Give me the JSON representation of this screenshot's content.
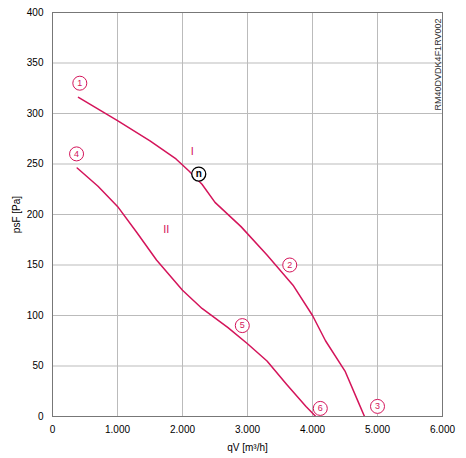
{
  "chart_data": {
    "type": "line",
    "x_label": "qV [m³/h]",
    "y_label": "psF [Pa]",
    "xlim": [
      0,
      6000
    ],
    "ylim": [
      0,
      400
    ],
    "xticks": [
      0,
      {
        "value": 1000,
        "label": "1.000"
      },
      {
        "value": 2000,
        "label": "2.000"
      },
      {
        "value": 3000,
        "label": "3.000"
      },
      {
        "value": 4000,
        "label": "4.000"
      },
      {
        "value": 5000,
        "label": "5.000"
      },
      {
        "value": 6000,
        "label": "6.000"
      }
    ],
    "yticks": [
      0,
      50,
      100,
      150,
      200,
      250,
      300,
      350,
      400
    ],
    "grid": true,
    "color": "#d4145a",
    "series": [
      {
        "name": "I",
        "label_x": 2150,
        "label_y": 262,
        "x": [
          400,
          1000,
          1500,
          1900,
          2100,
          2300,
          2500,
          2900,
          3300,
          3700,
          4000,
          4200,
          4500,
          4700,
          4800
        ],
        "values": [
          316,
          293,
          273,
          255,
          243,
          230,
          212,
          188,
          160,
          130,
          100,
          75,
          45,
          15,
          0
        ]
      },
      {
        "name": "II",
        "label_x": 1750,
        "label_y": 185,
        "x": [
          380,
          700,
          1000,
          1300,
          1600,
          2000,
          2300,
          2700,
          3000,
          3300,
          3600,
          3900,
          4050
        ],
        "values": [
          246,
          228,
          208,
          182,
          155,
          125,
          107,
          88,
          72,
          55,
          32,
          10,
          0
        ]
      }
    ],
    "annotations": [
      {
        "text": "1",
        "x": 420,
        "y": 330
      },
      {
        "text": "2",
        "x": 3650,
        "y": 150
      },
      {
        "text": "3",
        "x": 5000,
        "y": 10
      },
      {
        "text": "4",
        "x": 370,
        "y": 260
      },
      {
        "text": "5",
        "x": 2920,
        "y": 90
      },
      {
        "text": "6",
        "x": 4120,
        "y": 8
      }
    ],
    "operating_point": {
      "text": "n",
      "x": 2250,
      "y": 240
    },
    "code_label": "RM40DVDK4F1RV002"
  }
}
